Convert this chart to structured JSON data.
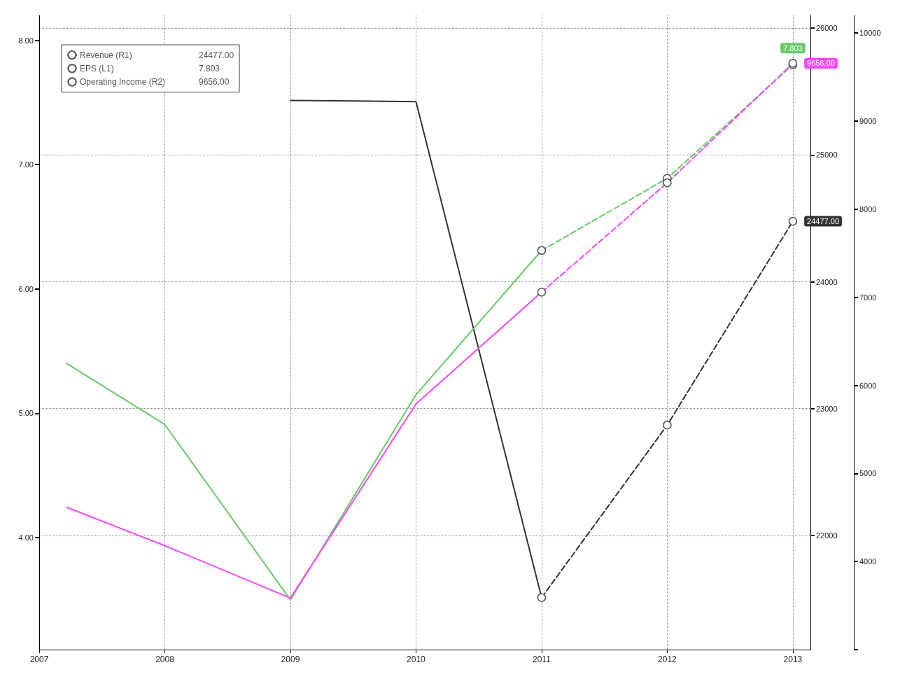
{
  "chart_data": {
    "type": "line",
    "xlim": [
      2007,
      2013.14
    ],
    "xticks": [
      2007,
      2008,
      2009,
      2010,
      2011,
      2012,
      2013
    ],
    "ylim": [
      3.1,
      8.2
    ],
    "yticks": [
      {
        "value": 4,
        "label": "4.00"
      },
      {
        "value": 5,
        "label": "5.00"
      },
      {
        "value": 6,
        "label": "6.00"
      },
      {
        "value": 7,
        "label": "7.00"
      },
      {
        "value": 8,
        "label": "8.00"
      }
    ],
    "y2lim": [
      21100,
      26100
    ],
    "y2ticks": [
      22000,
      23000,
      24000,
      25000,
      26000
    ],
    "y3lim": [
      3000,
      10200
    ],
    "y3ticks": [
      {
        "value": 3000,
        "label": null
      },
      4000,
      5000,
      6000,
      7000,
      8000,
      9000,
      10000
    ],
    "grid": true,
    "legend": "top left",
    "series": [
      {
        "name": "Revenue (R1)",
        "color": "#333333",
        "axis": "y2",
        "line_style": "solid",
        "marker": "none",
        "x": [
          2009,
          2010,
          2011
        ],
        "values": [
          25430,
          25420,
          21510
        ]
      },
      {
        "color": "#333333",
        "axis": "y2",
        "line_style": "dashed",
        "marker": "circle",
        "x": [
          2011,
          2012,
          2013
        ],
        "values": [
          21510,
          22870,
          24477
        ],
        "value_labels": [
          null,
          null,
          "24477.00"
        ]
      },
      {
        "name": "EPS (L1)",
        "color": "#66cc66",
        "line_style": "solid",
        "marker": "none",
        "x": [
          2007.22,
          2008,
          2009,
          2010,
          2011
        ],
        "values": [
          5.4,
          4.91,
          3.5,
          5.15,
          6.31
        ]
      },
      {
        "color": "#66cc66",
        "line_style": "dashed",
        "marker": "circle",
        "x": [
          2011,
          2012,
          2013
        ],
        "values": [
          6.31,
          6.89,
          7.803
        ],
        "value_labels": [
          null,
          null,
          "7.803"
        ]
      },
      {
        "name": "Operating Income (R2)",
        "color": "#ff44ff",
        "axis": "y3",
        "line_style": "solid",
        "marker": "none",
        "x": [
          2007.22,
          2008,
          2009,
          2010,
          2011
        ],
        "values": [
          4615,
          4180,
          3585,
          5790,
          7058
        ]
      },
      {
        "color": "#ff44ff",
        "axis": "y3",
        "line_style": "dashed",
        "marker": "circle",
        "x": [
          2011,
          2012,
          2013
        ],
        "values": [
          7058,
          8300,
          9656
        ],
        "value_labels": [
          null,
          null,
          "9656.00"
        ]
      }
    ]
  }
}
